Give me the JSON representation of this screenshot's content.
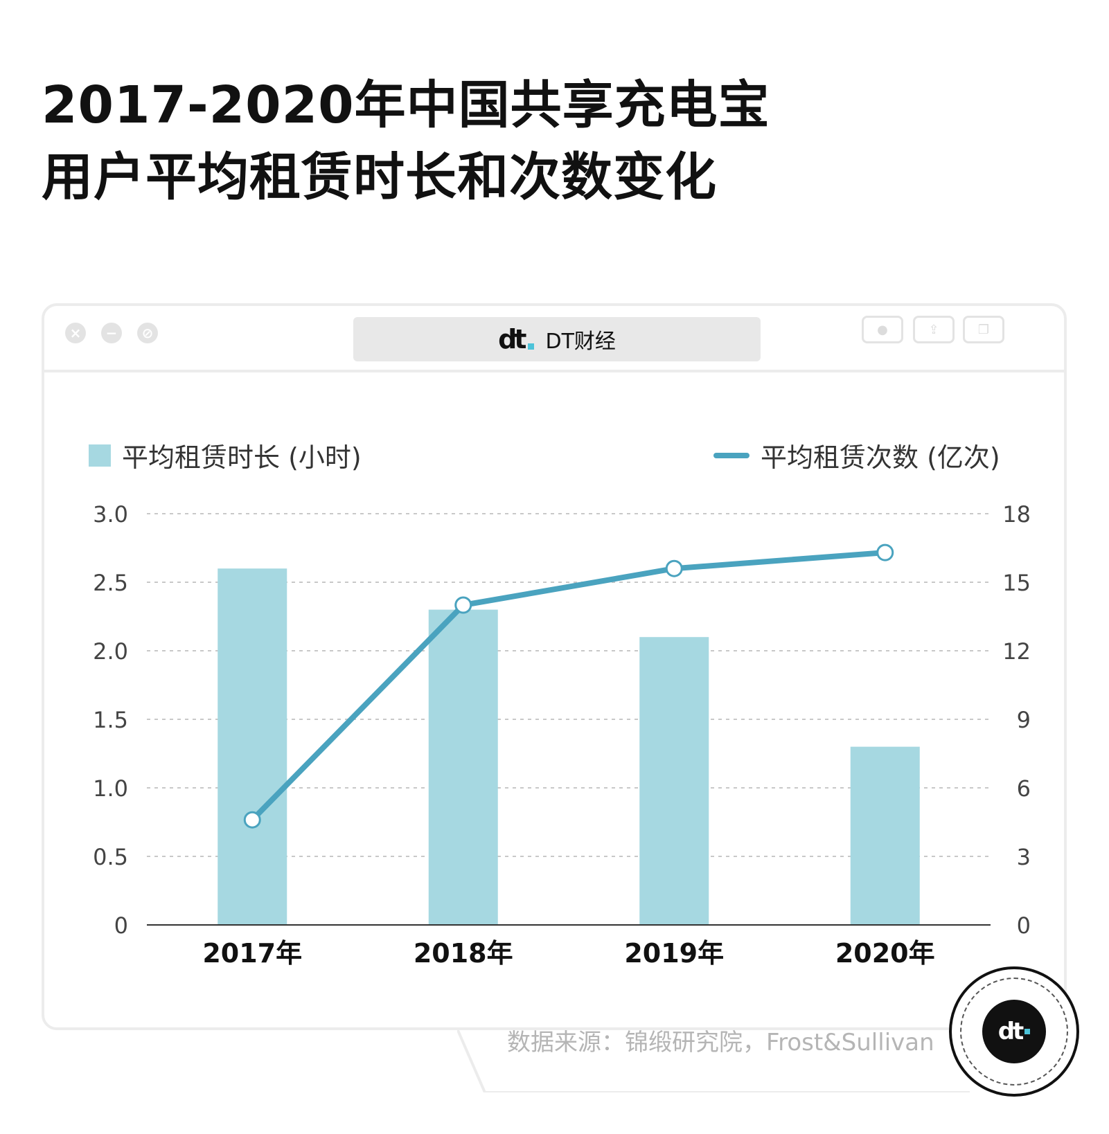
{
  "title_lines": [
    "2017-2020年中国共享充电宝",
    "用户平均租赁时长和次数变化"
  ],
  "window": {
    "address": "DT财经",
    "logo": "dt-logo",
    "buttons": [
      "close-icon",
      "minimize-icon",
      "block-icon",
      "record-icon",
      "share-icon",
      "copy-icon"
    ]
  },
  "source": "数据来源：锦缎研究院，Frost&Sullivan",
  "colors": {
    "bar": "#a6d8e1",
    "line": "#4aa3bf",
    "grid": "#c8c8c8",
    "axis": "#333333",
    "accent": "#4cc3d9"
  },
  "chart_data": {
    "type": "bar",
    "title": "2017-2020年中国共享充电宝用户平均租赁时长和次数变化",
    "categories": [
      "2017年",
      "2018年",
      "2019年",
      "2020年"
    ],
    "series": [
      {
        "name": "平均租赁时长 (小时)",
        "type": "bar",
        "axis": "left",
        "values": [
          2.6,
          2.3,
          2.1,
          1.3
        ]
      },
      {
        "name": "平均租赁次数 (亿次)",
        "type": "line",
        "axis": "right",
        "values": [
          4.6,
          14.0,
          15.6,
          16.3
        ]
      }
    ],
    "y_left": {
      "range": [
        0,
        3.0
      ],
      "ticks": [
        "0",
        "0.5",
        "1.0",
        "1.5",
        "2.0",
        "2.5",
        "3.0"
      ]
    },
    "y_right": {
      "range": [
        0,
        18
      ],
      "ticks": [
        "0",
        "3",
        "6",
        "9",
        "12",
        "15",
        "18"
      ]
    },
    "grid": true,
    "legend": [
      "top-left",
      "top-right"
    ]
  }
}
